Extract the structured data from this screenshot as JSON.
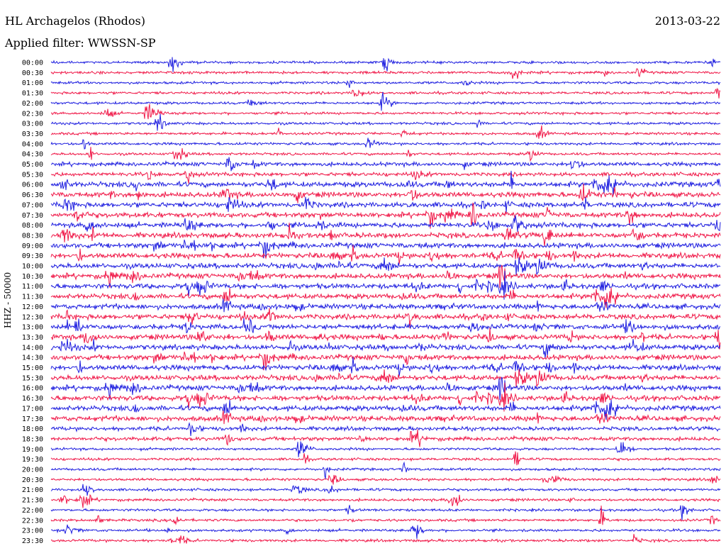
{
  "header": {
    "station": "HL Archagelos (Rhodos)",
    "date": "2013-03-22",
    "filter": "Applied filter: WWSSN-SP"
  },
  "chart_data": {
    "type": "line",
    "title": "HL Archagelos (Rhodos)",
    "ylabel": "HHZ - 50000",
    "tick_labels": [
      "00:00",
      "00:30",
      "01:00",
      "01:30",
      "02:00",
      "02:30",
      "03:00",
      "03:30",
      "04:00",
      "04:30",
      "05:00",
      "05:30",
      "06:00",
      "06:30",
      "07:00",
      "07:30",
      "08:00",
      "08:30",
      "09:00",
      "09:30",
      "10:00",
      "10:30",
      "11:00",
      "11:30",
      "12:00",
      "12:30",
      "13:00",
      "13:30",
      "14:00",
      "14:30",
      "15:00",
      "15:30",
      "16:00",
      "16:30",
      "17:00",
      "17:30",
      "18:00",
      "18:30",
      "19:00",
      "19:30",
      "20:00",
      "20:30",
      "21:00",
      "21:30",
      "22:00",
      "22:30",
      "23:00",
      "23:30"
    ],
    "colors": [
      "#2020e0",
      "#f01848"
    ],
    "trace_minutes": 30,
    "grid": false
  }
}
